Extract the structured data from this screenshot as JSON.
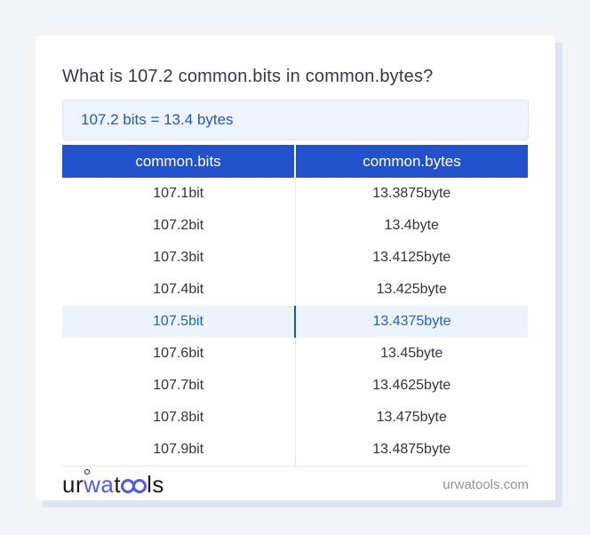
{
  "page": {
    "title": "What is 107.2 common.bits in common.bytes?",
    "result": "107.2 bits = 13.4 bytes"
  },
  "table": {
    "headers": {
      "bits": "common.bits",
      "bytes": "common.bytes"
    },
    "rows": [
      {
        "bits": "107.1bit",
        "bytes": "13.3875byte"
      },
      {
        "bits": "107.2bit",
        "bytes": "13.4byte"
      },
      {
        "bits": "107.3bit",
        "bytes": "13.4125byte"
      },
      {
        "bits": "107.4bit",
        "bytes": "13.425byte"
      },
      {
        "bits": "107.5bit",
        "bytes": "13.4375byte"
      },
      {
        "bits": "107.6bit",
        "bytes": "13.45byte"
      },
      {
        "bits": "107.7bit",
        "bytes": "13.4625byte"
      },
      {
        "bits": "107.8bit",
        "bytes": "13.475byte"
      },
      {
        "bits": "107.9bit",
        "bytes": "13.4875byte"
      }
    ],
    "highlighted_row": 4
  },
  "footer": {
    "logo_parts": {
      "p1": "ur",
      "p2": "wa",
      "p3": "t",
      "p4": "ls"
    },
    "domain": "urwatools.com"
  },
  "colors": {
    "header_blue": "#2152cb",
    "result_text_blue": "#2157c7",
    "highlight_bg": "#ebf3fd",
    "highlight_divider": "#1d58a9",
    "page_bg": "#f2f4fa",
    "logo_blue": "#5059ef"
  }
}
